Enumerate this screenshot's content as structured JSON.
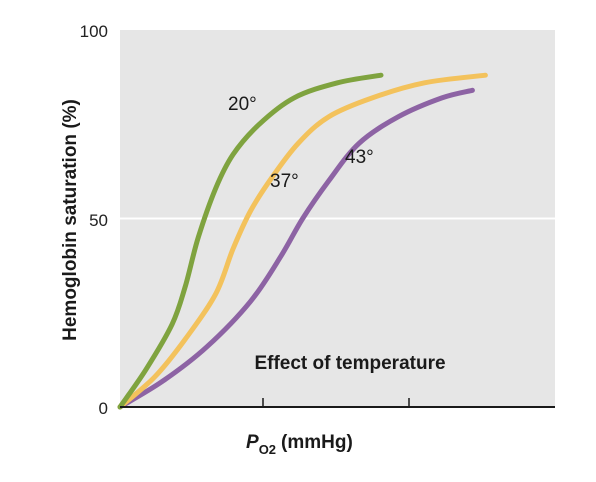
{
  "chart_data": {
    "type": "line",
    "title": "",
    "xlabel": "P",
    "xlabel_sub": "O2",
    "xlabel_unit": "(mmHg)",
    "ylabel": "Hemoglobin saturation (%)",
    "ylim": [
      0,
      100
    ],
    "xlim": [
      0,
      100
    ],
    "yticks": [
      "0",
      "50",
      "100"
    ],
    "grid": "y=50",
    "annotation": "Effect of temperature",
    "colors": {
      "background": "#e6e6e6",
      "gridline": "#ffffff",
      "axis": "#1a1a1a"
    },
    "series": [
      {
        "name": "20°",
        "color": "#7fa33f",
        "points": [
          [
            0,
            0
          ],
          [
            6,
            10
          ],
          [
            12,
            22
          ],
          [
            15,
            32
          ],
          [
            18,
            45
          ],
          [
            22,
            58
          ],
          [
            26,
            67
          ],
          [
            32,
            75
          ],
          [
            40,
            82
          ],
          [
            50,
            86
          ],
          [
            60,
            88
          ]
        ]
      },
      {
        "name": "37°",
        "color": "#f3c25c",
        "points": [
          [
            0,
            0
          ],
          [
            8,
            8
          ],
          [
            15,
            18
          ],
          [
            22,
            30
          ],
          [
            26,
            42
          ],
          [
            30,
            52
          ],
          [
            35,
            61
          ],
          [
            41,
            70
          ],
          [
            48,
            77
          ],
          [
            58,
            82
          ],
          [
            70,
            86
          ],
          [
            84,
            88
          ]
        ]
      },
      {
        "name": "43°",
        "color": "#8d63a4",
        "points": [
          [
            0,
            0
          ],
          [
            10,
            7
          ],
          [
            20,
            16
          ],
          [
            30,
            28
          ],
          [
            37,
            40
          ],
          [
            42,
            50
          ],
          [
            48,
            60
          ],
          [
            55,
            70
          ],
          [
            64,
            77
          ],
          [
            74,
            82
          ],
          [
            81,
            84
          ]
        ]
      }
    ]
  }
}
